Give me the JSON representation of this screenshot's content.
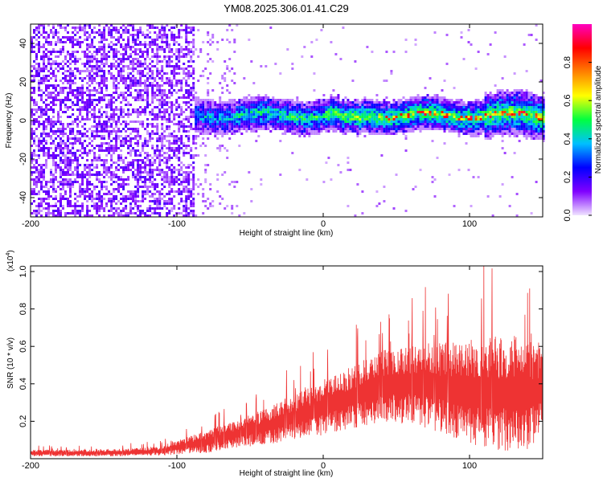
{
  "chart_data": [
    {
      "type": "heatmap",
      "title": "YM08.2025.306.01.41.C29",
      "xlabel": "Height of straight line (km)",
      "ylabel": "Frequency (Hz)",
      "xlim": [
        -200,
        150
      ],
      "ylim": [
        -50,
        50
      ],
      "x_ticks": [
        -200,
        -100,
        0,
        100
      ],
      "x_tick_labels": [
        "-200",
        "-100",
        "0",
        "100"
      ],
      "y_ticks": [
        -40,
        -20,
        0,
        20,
        40
      ],
      "y_tick_labels": [
        "-40",
        "-20",
        "0",
        "20",
        "40"
      ],
      "description_features": {
        "noise_region_x": [
          -200,
          -88
        ],
        "signal_band_x": [
          -88,
          150
        ],
        "signal_band_center_freq_hz": 2,
        "signal_band_halfwidth_hz": 8
      },
      "colorbar": {
        "label": "Normalized spectral amplitude",
        "range": [
          0.0,
          1.0
        ],
        "ticks": [
          0.0,
          0.2,
          0.4,
          0.6,
          0.8
        ],
        "tick_labels": [
          "0.0",
          "0.2",
          "0.4",
          "0.6",
          "0.8"
        ],
        "colors": [
          "#f0e4ff",
          "#8000ff",
          "#0000ff",
          "#00c0ff",
          "#00ff40",
          "#ffff00",
          "#ff8000",
          "#ff0000",
          "#ff00c0"
        ]
      }
    },
    {
      "type": "line",
      "xlabel": "Height of straight line (km)",
      "ylabel": "SNR (10 * v/v)",
      "y_scale_label": "(x10",
      "y_scale_exp": "4",
      "y_scale_close": ")",
      "xlim": [
        -200,
        150
      ],
      "ylim": [
        0,
        1.03
      ],
      "x_ticks": [
        -200,
        -100,
        0,
        100
      ],
      "x_tick_labels": [
        "-200",
        "-100",
        "0",
        "100"
      ],
      "y_ticks": [
        0.2,
        0.4,
        0.6,
        0.8,
        1.0
      ],
      "y_tick_labels": [
        "0.2",
        "0.4",
        "0.6",
        "0.8",
        "1.0"
      ],
      "line_color": "#ee3333",
      "envelope": {
        "x": [
          -200,
          -150,
          -110,
          -100,
          -80,
          -60,
          -40,
          -20,
          0,
          20,
          40,
          60,
          80,
          100,
          120,
          140,
          150
        ],
        "median": [
          0.03,
          0.03,
          0.04,
          0.06,
          0.09,
          0.13,
          0.17,
          0.22,
          0.27,
          0.33,
          0.39,
          0.4,
          0.38,
          0.36,
          0.35,
          0.35,
          0.36
        ],
        "spread": [
          0.015,
          0.015,
          0.02,
          0.03,
          0.05,
          0.06,
          0.08,
          0.1,
          0.12,
          0.14,
          0.16,
          0.18,
          0.2,
          0.24,
          0.26,
          0.25,
          0.2
        ]
      }
    }
  ]
}
